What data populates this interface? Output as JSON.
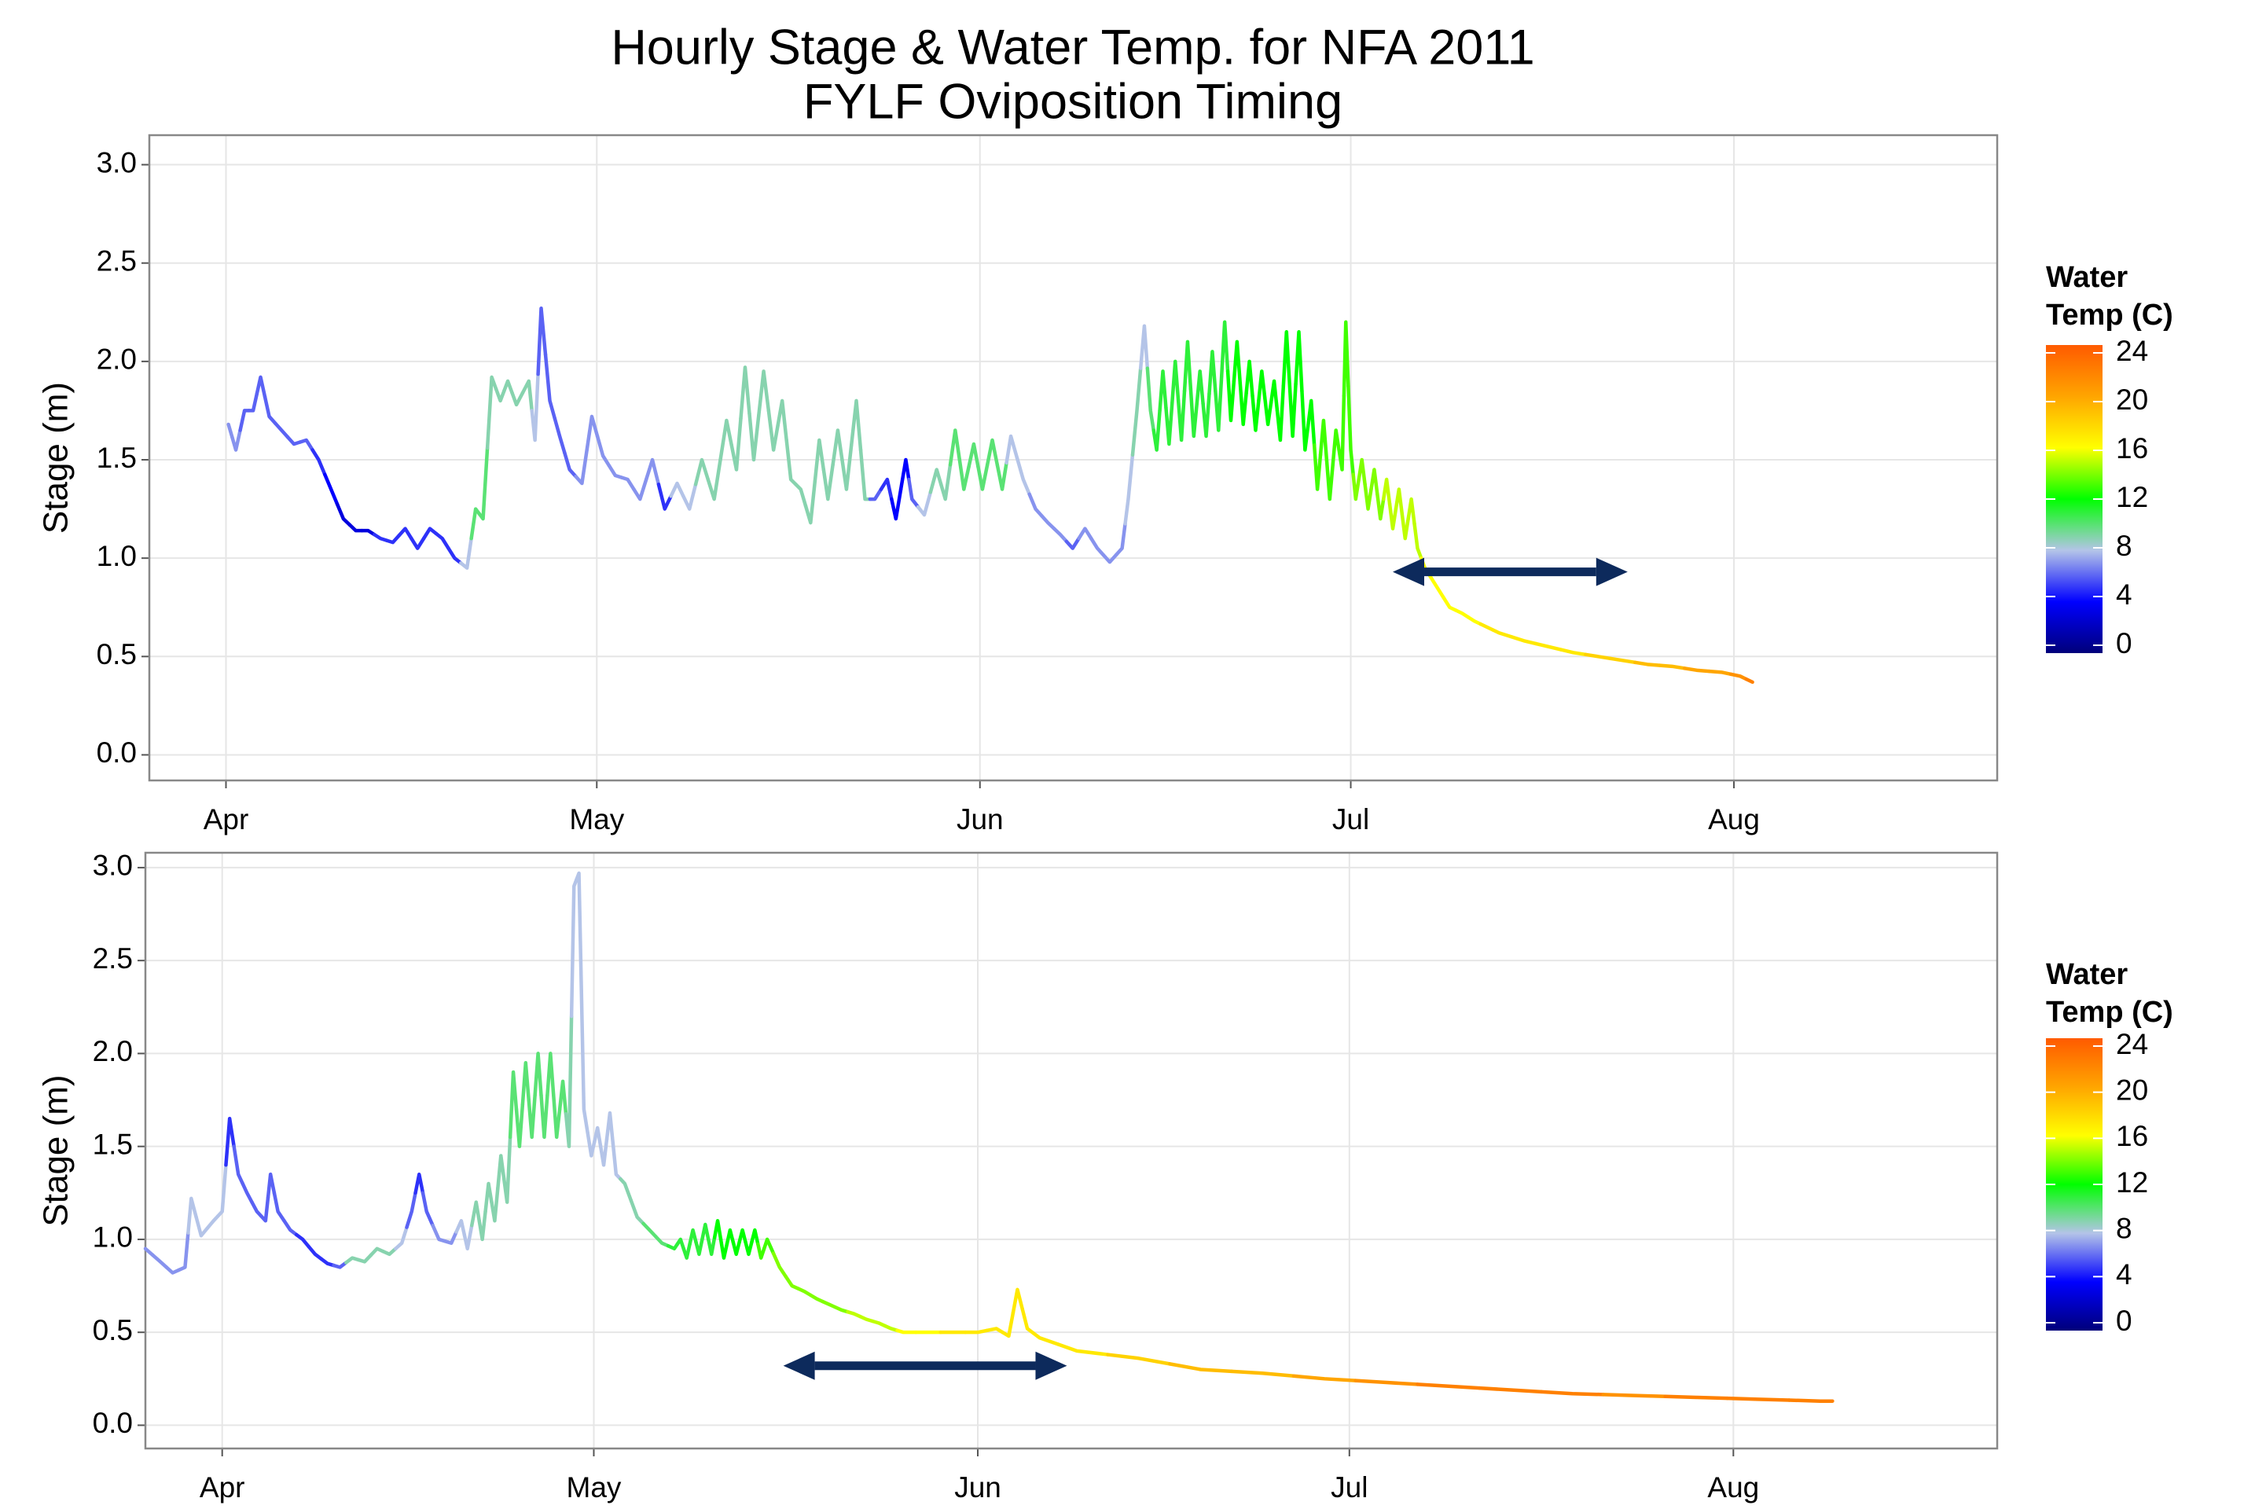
{
  "chart_data": [
    {
      "type": "line",
      "title": "Hourly Stage & Water Temp. for NFA 2011",
      "subtitle": "FYLF Oviposition Timing",
      "ylabel": "Stage (m)",
      "xlim": [
        84.8,
        234.3
      ],
      "ylim": [
        -0.13,
        3.15
      ],
      "xticks": [
        {
          "value": 91,
          "label": "Apr"
        },
        {
          "value": 121,
          "label": "May"
        },
        {
          "value": 152,
          "label": "Jun"
        },
        {
          "value": 182,
          "label": "Jul"
        },
        {
          "value": 213,
          "label": "Aug"
        }
      ],
      "yticks": [
        {
          "value": 0,
          "label": "0.0"
        },
        0.5,
        {
          "value": 1,
          "label": "1.0"
        },
        1.5,
        {
          "value": 2,
          "label": "2.0"
        },
        2.5,
        {
          "value": 3,
          "label": "3.0"
        }
      ],
      "grid": true,
      "x": [
        91.2,
        91.8,
        92.5,
        93.2,
        93.8,
        94.5,
        95.5,
        96.5,
        97.5,
        98.5,
        99.5,
        100.5,
        101.5,
        102.5,
        103.5,
        104.5,
        105.5,
        106.5,
        107.5,
        108.5,
        109.5,
        110.5,
        111.2,
        111.8,
        112.5,
        113.2,
        113.8,
        114.5,
        115.5,
        116.0,
        116.5,
        117.2,
        118.0,
        118.8,
        119.8,
        120.6,
        121.5,
        122.5,
        123.5,
        124.5,
        125.5,
        126.5,
        127.5,
        128.5,
        129.5,
        130.5,
        131.5,
        132.3,
        133.0,
        133.7,
        134.5,
        135.3,
        136.0,
        136.7,
        137.5,
        138.3,
        139.0,
        139.7,
        140.5,
        141.2,
        142.0,
        142.7,
        143.5,
        144.5,
        145.2,
        146.0,
        146.5,
        147.5,
        148.5,
        149.2,
        150.0,
        150.7,
        151.5,
        152.2,
        153.0,
        153.8,
        154.5,
        155.5,
        156.5,
        157.5,
        158.5,
        159.5,
        160.5,
        161.5,
        162.5,
        163.5,
        164.0,
        164.7,
        165.3,
        165.8,
        166.3,
        166.8,
        167.3,
        167.8,
        168.3,
        168.8,
        169.3,
        169.8,
        170.3,
        170.8,
        171.3,
        171.8,
        172.3,
        172.8,
        173.3,
        173.8,
        174.3,
        174.8,
        175.3,
        175.8,
        176.3,
        176.8,
        177.3,
        177.8,
        178.3,
        178.8,
        179.3,
        179.8,
        180.3,
        180.8,
        181.3,
        181.6,
        182.0,
        182.4,
        182.9,
        183.4,
        183.9,
        184.4,
        184.9,
        185.4,
        185.9,
        186.4,
        186.9,
        187.4,
        188.0,
        189,
        190,
        191,
        192,
        193,
        194,
        196,
        198,
        200,
        202,
        204,
        206,
        208,
        210,
        212,
        213.5,
        214.5
      ],
      "values": [
        1.68,
        1.55,
        1.75,
        1.75,
        1.92,
        1.72,
        1.65,
        1.58,
        1.6,
        1.5,
        1.35,
        1.2,
        1.14,
        1.14,
        1.1,
        1.08,
        1.15,
        1.05,
        1.15,
        1.1,
        1.0,
        0.95,
        1.25,
        1.2,
        1.92,
        1.8,
        1.9,
        1.78,
        1.9,
        1.6,
        2.27,
        1.8,
        1.62,
        1.45,
        1.38,
        1.72,
        1.52,
        1.42,
        1.4,
        1.3,
        1.5,
        1.25,
        1.38,
        1.25,
        1.5,
        1.3,
        1.7,
        1.45,
        1.97,
        1.5,
        1.95,
        1.55,
        1.8,
        1.4,
        1.35,
        1.18,
        1.6,
        1.3,
        1.65,
        1.35,
        1.8,
        1.3,
        1.3,
        1.4,
        1.2,
        1.5,
        1.3,
        1.22,
        1.45,
        1.3,
        1.65,
        1.35,
        1.58,
        1.35,
        1.6,
        1.35,
        1.62,
        1.4,
        1.25,
        1.18,
        1.12,
        1.05,
        1.15,
        1.05,
        0.98,
        1.05,
        1.3,
        1.75,
        2.18,
        1.75,
        1.55,
        1.95,
        1.58,
        2.0,
        1.6,
        2.1,
        1.62,
        1.95,
        1.62,
        2.05,
        1.65,
        2.2,
        1.7,
        2.1,
        1.68,
        2.0,
        1.65,
        1.95,
        1.68,
        1.9,
        1.6,
        2.15,
        1.62,
        2.15,
        1.55,
        1.8,
        1.35,
        1.7,
        1.3,
        1.65,
        1.45,
        2.2,
        1.55,
        1.3,
        1.5,
        1.25,
        1.45,
        1.2,
        1.4,
        1.15,
        1.35,
        1.1,
        1.3,
        1.05,
        0.95,
        0.85,
        0.75,
        0.72,
        0.68,
        0.65,
        0.62,
        0.58,
        0.55,
        0.52,
        0.5,
        0.48,
        0.46,
        0.45,
        0.43,
        0.42,
        0.4,
        0.37
      ],
      "temperature": [
        7,
        7,
        6,
        6,
        6,
        6,
        6,
        6,
        6,
        5,
        4,
        3,
        3,
        3,
        5,
        5,
        5,
        5,
        5,
        5,
        5,
        8,
        10,
        10,
        9,
        9,
        9,
        9,
        9,
        8,
        6,
        6,
        6,
        6,
        7,
        7,
        7,
        7,
        7,
        7,
        7,
        5,
        8,
        8,
        9,
        9,
        9,
        9,
        9,
        9,
        9,
        9,
        9,
        9,
        9,
        9,
        9,
        9,
        9,
        9,
        9,
        9,
        6,
        5,
        4,
        4,
        6,
        8,
        9,
        9,
        10,
        10,
        10,
        10,
        10,
        10,
        8,
        8,
        7,
        7,
        7,
        6,
        7,
        7,
        7,
        7,
        8,
        9,
        8,
        10,
        11,
        11,
        11,
        11,
        11,
        11,
        11,
        11,
        11,
        11,
        11,
        11,
        12,
        12,
        12,
        12,
        12,
        12,
        12,
        12,
        12,
        12,
        12,
        12,
        12,
        12,
        13,
        13,
        13,
        13,
        13,
        13,
        13,
        14,
        14,
        14,
        14,
        14,
        15,
        15,
        15,
        15,
        15,
        15,
        16,
        16,
        16,
        16,
        16,
        17,
        17,
        17,
        17,
        17,
        18,
        18,
        19,
        19,
        20,
        20,
        21,
        22
      ],
      "arrow": {
        "x": [
          185.4,
          204.4
        ],
        "y": 0.93,
        "color": "#0d2a5c"
      },
      "colorbar": {
        "title": [
          "Water",
          "Temp (C)"
        ],
        "limits": [
          0,
          24
        ],
        "ticks": [
          0,
          4,
          8,
          12,
          16,
          20,
          24
        ],
        "colors": [
          "#00007a",
          "#0000ff",
          "#b4c4e8",
          "#00ff00",
          "#ffff00",
          "#ffa500",
          "#ff5a00"
        ]
      }
    },
    {
      "type": "line",
      "ylabel": "Stage (m)",
      "xlim": [
        84.8,
        234.3
      ],
      "ylim": [
        -0.125,
        3.08
      ],
      "xticks": [
        {
          "value": 91,
          "label": "Apr"
        },
        {
          "value": 121,
          "label": "May"
        },
        {
          "value": 152,
          "label": "Jun"
        },
        {
          "value": 182,
          "label": "Jul"
        },
        {
          "value": 213,
          "label": "Aug"
        }
      ],
      "yticks": [
        {
          "value": 0,
          "label": "0.0"
        },
        0.5,
        {
          "value": 1,
          "label": "1.0"
        },
        1.5,
        {
          "value": 2,
          "label": "2.0"
        },
        2.5,
        {
          "value": 3,
          "label": "3.0"
        }
      ],
      "grid": true,
      "x": [
        84.8,
        86,
        87,
        88,
        88.5,
        89.3,
        90.3,
        91,
        91.6,
        92.3,
        93,
        93.8,
        94.5,
        94.9,
        95.5,
        96.5,
        97.5,
        98.5,
        99.5,
        100.5,
        101.5,
        102.5,
        103.5,
        104.5,
        105.5,
        106.3,
        106.9,
        107.5,
        108.5,
        109.5,
        110.3,
        110.8,
        111.5,
        112,
        112.5,
        113,
        113.5,
        114,
        114.5,
        115,
        115.5,
        116,
        116.5,
        117,
        117.5,
        118,
        118.5,
        119,
        119.4,
        119.8,
        120.2,
        120.8,
        121.3,
        121.8,
        122.3,
        122.8,
        123.5,
        124.5,
        125.5,
        126.5,
        127.5,
        128,
        128.5,
        129,
        129.5,
        130,
        130.5,
        131,
        131.5,
        132,
        132.5,
        133,
        133.5,
        134,
        134.5,
        135,
        136,
        137,
        138,
        139,
        140,
        141,
        142,
        143,
        144,
        145,
        146,
        148,
        150,
        152,
        153.5,
        154.5,
        155.2,
        156,
        157,
        160,
        165,
        170,
        175,
        180,
        185,
        190,
        195,
        200,
        205,
        210,
        215,
        220,
        221
      ],
      "values": [
        0.95,
        0.88,
        0.82,
        0.85,
        1.22,
        1.02,
        1.1,
        1.15,
        1.65,
        1.35,
        1.25,
        1.15,
        1.1,
        1.35,
        1.15,
        1.05,
        1.0,
        0.92,
        0.87,
        0.85,
        0.9,
        0.88,
        0.95,
        0.92,
        0.98,
        1.15,
        1.35,
        1.15,
        1.0,
        0.98,
        1.1,
        0.95,
        1.2,
        1.0,
        1.3,
        1.1,
        1.45,
        1.2,
        1.9,
        1.5,
        1.95,
        1.55,
        2.0,
        1.55,
        2.0,
        1.55,
        1.85,
        1.5,
        2.9,
        2.97,
        1.7,
        1.45,
        1.6,
        1.4,
        1.68,
        1.35,
        1.3,
        1.12,
        1.05,
        0.98,
        0.95,
        1.0,
        0.9,
        1.05,
        0.92,
        1.08,
        0.92,
        1.1,
        0.9,
        1.05,
        0.92,
        1.05,
        0.92,
        1.05,
        0.9,
        1.0,
        0.85,
        0.75,
        0.72,
        0.68,
        0.65,
        0.62,
        0.6,
        0.57,
        0.55,
        0.52,
        0.5,
        0.5,
        0.5,
        0.5,
        0.52,
        0.48,
        0.73,
        0.52,
        0.47,
        0.4,
        0.36,
        0.3,
        0.28,
        0.25,
        0.23,
        0.21,
        0.19,
        0.17,
        0.16,
        0.15,
        0.14,
        0.13,
        0.13
      ],
      "temperature": [
        7,
        7,
        7,
        7,
        8,
        8,
        8,
        8,
        5,
        6,
        6,
        6,
        6,
        6,
        6,
        6,
        5,
        5,
        5,
        6,
        9,
        9,
        9,
        9,
        8,
        6,
        5,
        6,
        7,
        7,
        8,
        8,
        9,
        9,
        9,
        9,
        9,
        9,
        10,
        10,
        10,
        10,
        10,
        10,
        10,
        10,
        10,
        9,
        8,
        8,
        8,
        8,
        8,
        8,
        8,
        8,
        9,
        9,
        10,
        10,
        11,
        11,
        11,
        11,
        11,
        11,
        11,
        12,
        12,
        12,
        12,
        12,
        12,
        12,
        13,
        13,
        14,
        14,
        14,
        14,
        14,
        14,
        15,
        15,
        15,
        15,
        16,
        16,
        17,
        17,
        17,
        17,
        17,
        17,
        17,
        17,
        18,
        19,
        19,
        20,
        21,
        22,
        22,
        22,
        21,
        22,
        22,
        22,
        22
      ],
      "arrow": {
        "x": [
          136.3,
          159.2
        ],
        "y": 0.32,
        "color": "#0d2a5c"
      },
      "colorbar": {
        "title": [
          "Water",
          "Temp (C)"
        ],
        "limits": [
          0,
          24
        ],
        "ticks": [
          0,
          4,
          8,
          12,
          16,
          20,
          24
        ],
        "colors": [
          "#00007a",
          "#0000ff",
          "#b4c4e8",
          "#00ff00",
          "#ffff00",
          "#ffa500",
          "#ff5a00"
        ]
      }
    }
  ]
}
